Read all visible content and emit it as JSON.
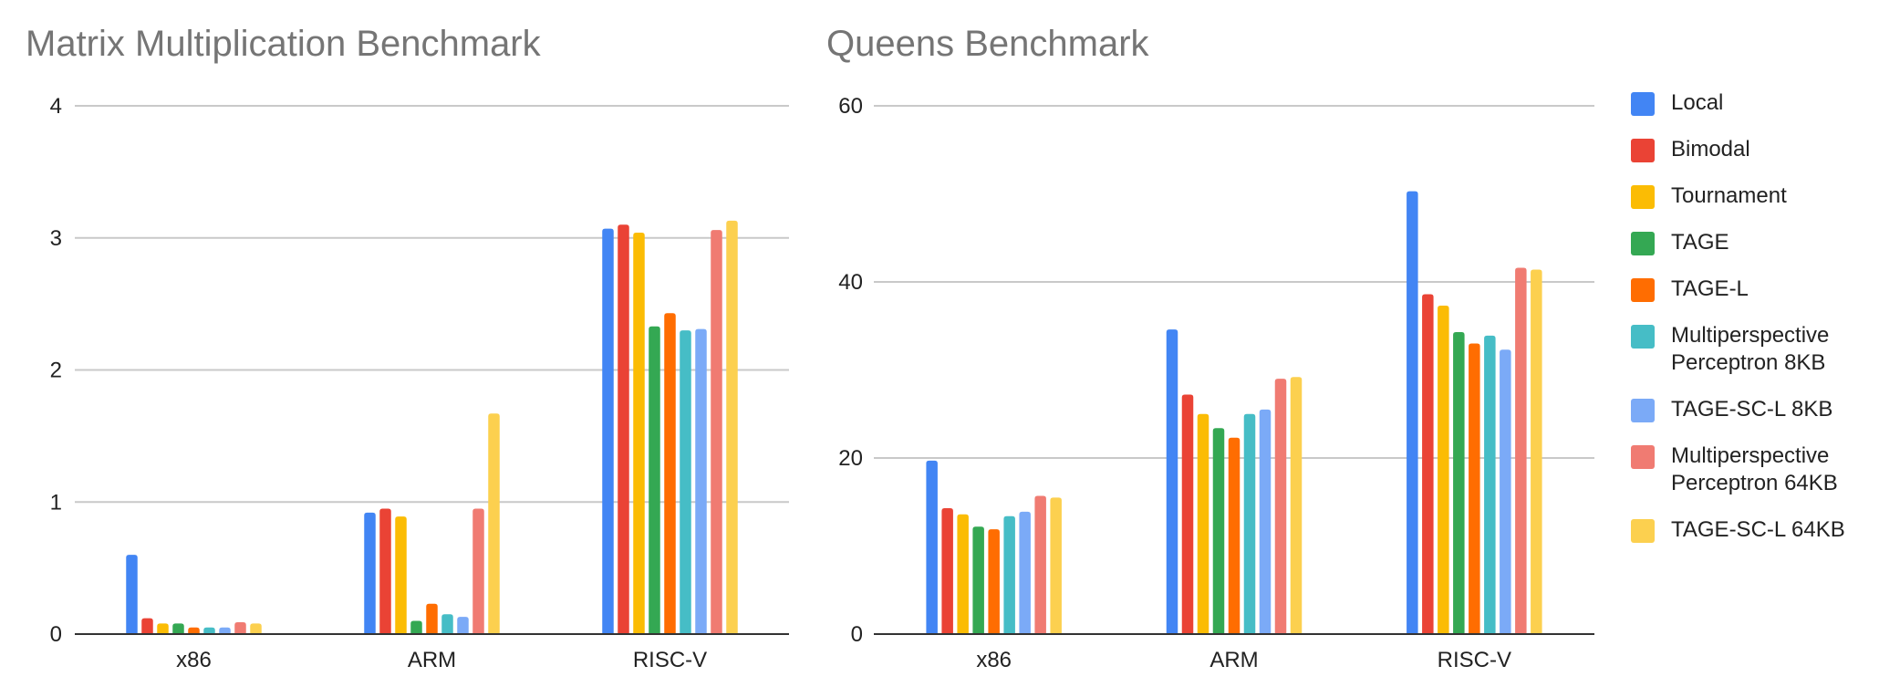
{
  "colors": {
    "series": [
      "#4285F4",
      "#EA4335",
      "#FBBC04",
      "#34A853",
      "#FF6D01",
      "#46BDC6",
      "#7BAAF7",
      "#F07B72",
      "#FCD04F"
    ],
    "grid": "#c9c9c9",
    "axis": "#333333",
    "title": "#757575"
  },
  "legend": [
    "Local",
    "Bimodal",
    "Tournament",
    "TAGE",
    "TAGE-L",
    "Multiperspective\nPerceptron 8KB",
    "TAGE-SC-L 8KB",
    "Multiperspective\nPerceptron 64KB",
    "TAGE-SC-L 64KB"
  ],
  "chart_data": [
    {
      "type": "bar",
      "title": "Matrix Multiplication Benchmark",
      "categories": [
        "x86",
        "ARM",
        "RISC-V"
      ],
      "ylim": [
        0,
        4
      ],
      "yticks": [
        0,
        1,
        2,
        3,
        4
      ],
      "grid": true,
      "legend_position": "right",
      "series": [
        {
          "name": "Local",
          "values": [
            0.6,
            0.92,
            3.07
          ]
        },
        {
          "name": "Bimodal",
          "values": [
            0.12,
            0.95,
            3.1
          ]
        },
        {
          "name": "Tournament",
          "values": [
            0.08,
            0.89,
            3.04
          ]
        },
        {
          "name": "TAGE",
          "values": [
            0.08,
            0.1,
            2.33
          ]
        },
        {
          "name": "TAGE-L",
          "values": [
            0.05,
            0.23,
            2.43
          ]
        },
        {
          "name": "Multiperspective Perceptron 8KB",
          "values": [
            0.05,
            0.15,
            2.3
          ]
        },
        {
          "name": "TAGE-SC-L 8KB",
          "values": [
            0.05,
            0.13,
            2.31
          ]
        },
        {
          "name": "Multiperspective Perceptron 64KB",
          "values": [
            0.09,
            0.95,
            3.06
          ]
        },
        {
          "name": "TAGE-SC-L 64KB",
          "values": [
            0.08,
            1.67,
            3.13
          ]
        }
      ]
    },
    {
      "type": "bar",
      "title": "Queens Benchmark",
      "categories": [
        "x86",
        "ARM",
        "RISC-V"
      ],
      "ylim": [
        0,
        60
      ],
      "yticks": [
        0,
        20,
        40,
        60
      ],
      "grid": true,
      "legend_position": "right",
      "series": [
        {
          "name": "Local",
          "values": [
            19.7,
            34.6,
            50.3
          ]
        },
        {
          "name": "Bimodal",
          "values": [
            14.3,
            27.2,
            38.6
          ]
        },
        {
          "name": "Tournament",
          "values": [
            13.6,
            25.0,
            37.3
          ]
        },
        {
          "name": "TAGE",
          "values": [
            12.2,
            23.4,
            34.3
          ]
        },
        {
          "name": "TAGE-L",
          "values": [
            11.9,
            22.3,
            33.0
          ]
        },
        {
          "name": "Multiperspective Perceptron 8KB",
          "values": [
            13.4,
            25.0,
            33.9
          ]
        },
        {
          "name": "TAGE-SC-L 8KB",
          "values": [
            13.9,
            25.5,
            32.3
          ]
        },
        {
          "name": "Multiperspective Perceptron 64KB",
          "values": [
            15.7,
            29.0,
            41.6
          ]
        },
        {
          "name": "TAGE-SC-L 64KB",
          "values": [
            15.5,
            29.2,
            41.4
          ]
        }
      ]
    }
  ]
}
